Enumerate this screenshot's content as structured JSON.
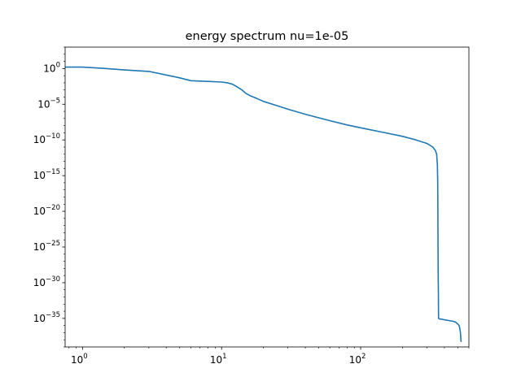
{
  "chart_data": {
    "type": "line",
    "title": "energy spectrum nu=1e-05",
    "xlabel": "",
    "ylabel": "",
    "x_scale": "log",
    "y_scale": "log",
    "xlim": [
      0.75,
      600
    ],
    "ylim_exponent": [
      -39,
      3
    ],
    "grid": false,
    "x_ticks": [
      {
        "value": 1,
        "base": "10",
        "exp": "0"
      },
      {
        "value": 10,
        "base": "10",
        "exp": "1"
      },
      {
        "value": 100,
        "base": "10",
        "exp": "2"
      }
    ],
    "y_ticks": [
      {
        "exp_value": 0,
        "base": "10",
        "exp": "0"
      },
      {
        "exp_value": -5,
        "base": "10",
        "exp": "−5"
      },
      {
        "exp_value": -10,
        "base": "10",
        "exp": "−10"
      },
      {
        "exp_value": -15,
        "base": "10",
        "exp": "−15"
      },
      {
        "exp_value": -20,
        "base": "10",
        "exp": "−20"
      },
      {
        "exp_value": -25,
        "base": "10",
        "exp": "−25"
      },
      {
        "exp_value": -30,
        "base": "10",
        "exp": "−30"
      },
      {
        "exp_value": -35,
        "base": "10",
        "exp": "−35"
      }
    ],
    "series": [
      {
        "color": "#1f77b4",
        "x": [
          0.75,
          1,
          1.5,
          2,
          3,
          4,
          5,
          6,
          8,
          10,
          11,
          12,
          13,
          14,
          15,
          16,
          18,
          20,
          25,
          30,
          40,
          50,
          60,
          80,
          100,
          150,
          200,
          250,
          300,
          330,
          345,
          352,
          356,
          358,
          359,
          360,
          361,
          362,
          363,
          365,
          370,
          380,
          400,
          430,
          460,
          480,
          500,
          510,
          515,
          520,
          523,
          525,
          527
        ],
        "log10_y": [
          0.2,
          0.2,
          0.0,
          -0.2,
          -0.4,
          -0.9,
          -1.3,
          -1.7,
          -1.8,
          -1.9,
          -2.0,
          -2.2,
          -2.6,
          -3.0,
          -3.5,
          -3.8,
          -4.2,
          -4.6,
          -5.2,
          -5.7,
          -6.4,
          -6.9,
          -7.3,
          -7.9,
          -8.3,
          -9.0,
          -9.5,
          -10.0,
          -10.5,
          -11.0,
          -11.5,
          -12.0,
          -13.5,
          -16.0,
          -20.0,
          -25.0,
          -29.5,
          -31.0,
          -35.0,
          -35.0,
          -35.1,
          -35.1,
          -35.2,
          -35.3,
          -35.4,
          -35.5,
          -35.8,
          -36.0,
          -36.3,
          -36.8,
          -37.3,
          -37.8,
          -38.3
        ]
      }
    ]
  }
}
